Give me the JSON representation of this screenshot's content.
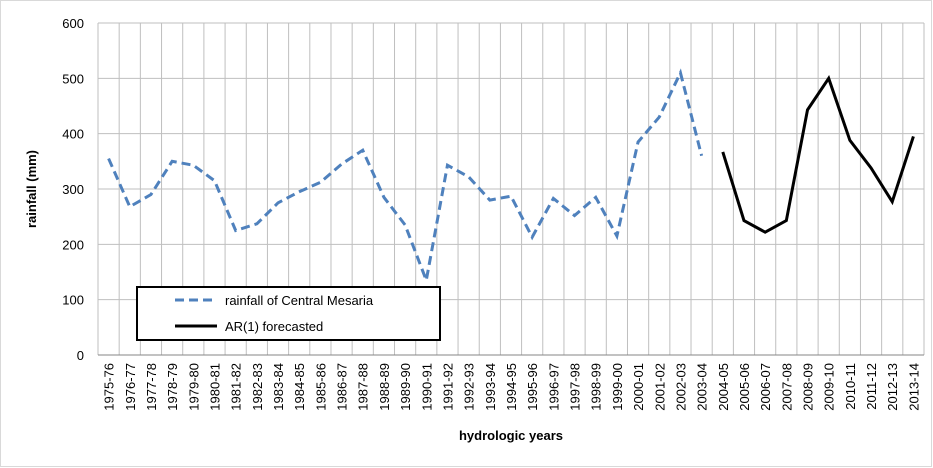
{
  "chart_data": {
    "type": "line",
    "categories": [
      "1975-76",
      "1976-77",
      "1977-78",
      "1978-79",
      "1979-80",
      "1980-81",
      "1981-82",
      "1982-83",
      "1983-84",
      "1984-85",
      "1985-86",
      "1986-87",
      "1987-88",
      "1988-89",
      "1989-90",
      "1990-91",
      "1991-92",
      "1992-93",
      "1993-94",
      "1994-95",
      "1995-96",
      "1996-97",
      "1997-98",
      "1998-99",
      "1999-00",
      "2000-01",
      "2001-02",
      "2002-03",
      "2003-04",
      "2004-05",
      "2005-06",
      "2006-07",
      "2007-08",
      "2008-09",
      "2009-10",
      "2010-11",
      "2011-12",
      "2012-13",
      "2013-14"
    ],
    "series": [
      {
        "name": "rainfall of Central Mesaria",
        "color": "#4f81bd",
        "dashed": true,
        "values": [
          355,
          268,
          290,
          350,
          343,
          315,
          225,
          237,
          275,
          295,
          312,
          345,
          370,
          285,
          235,
          135,
          343,
          322,
          280,
          287,
          213,
          283,
          252,
          285,
          215,
          385,
          430,
          510,
          360,
          null,
          null,
          null,
          null,
          null,
          null,
          null,
          null,
          null,
          null
        ]
      },
      {
        "name": "AR(1) forecasted",
        "color": "#000000",
        "dashed": false,
        "values": [
          null,
          null,
          null,
          null,
          null,
          null,
          null,
          null,
          null,
          null,
          null,
          null,
          null,
          null,
          null,
          null,
          null,
          null,
          null,
          null,
          null,
          null,
          null,
          null,
          null,
          null,
          null,
          null,
          null,
          367,
          243,
          222,
          243,
          443,
          500,
          388,
          338,
          277,
          395
        ]
      }
    ],
    "xlabel": "hydrologic years",
    "ylabel": "rainfall (mm)",
    "ylim": [
      0,
      600
    ],
    "yticks": [
      0,
      100,
      200,
      300,
      400,
      500,
      600
    ],
    "grid": true,
    "legend": "lower left"
  }
}
